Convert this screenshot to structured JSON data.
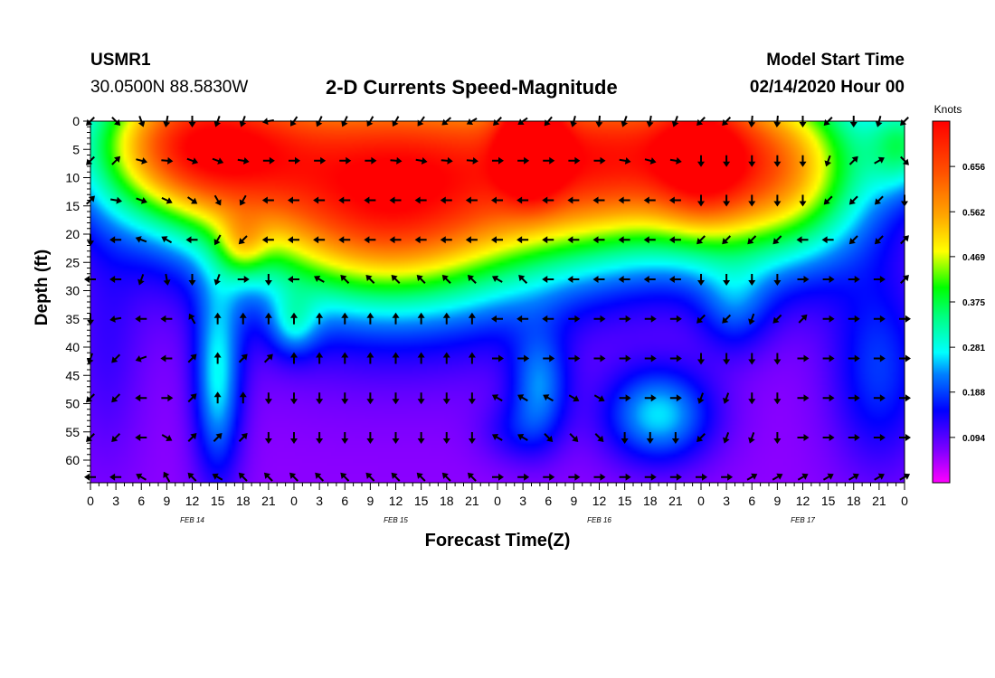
{
  "header": {
    "station": "USMR1",
    "coordinates": "30.0500N 88.5830W",
    "title": "2-D Currents Speed-Magnitude",
    "start_label": "Model Start Time",
    "start_value": "02/14/2020 Hour 00"
  },
  "chart_data": {
    "type": "heatmap",
    "title": "2-D Currents Speed-Magnitude",
    "xlabel": "Forecast Time(Z)",
    "ylabel": "Depth (ft)",
    "x_range": [
      0,
      96
    ],
    "y_range": [
      0,
      64
    ],
    "x_tick_labels": [
      "0",
      "3",
      "6",
      "9",
      "12",
      "15",
      "18",
      "21",
      "0",
      "3",
      "6",
      "9",
      "12",
      "15",
      "18",
      "21",
      "0",
      "3",
      "6",
      "9",
      "12",
      "15",
      "18",
      "21",
      "0",
      "3",
      "6",
      "9",
      "12",
      "15",
      "18",
      "21",
      "0"
    ],
    "y_tick_labels": [
      "0",
      "5",
      "10",
      "15",
      "20",
      "25",
      "30",
      "35",
      "40",
      "45",
      "50",
      "55",
      "60"
    ],
    "date_labels": [
      {
        "text": "FEB 14",
        "hour": 12
      },
      {
        "text": "FEB 15",
        "hour": 36
      },
      {
        "text": "FEB 16",
        "hour": 60
      },
      {
        "text": "FEB 17",
        "hour": 84
      }
    ],
    "colorbar": {
      "unit": "Knots",
      "range": [
        0,
        0.75
      ],
      "ticks": [
        "0.656",
        "0.562",
        "0.469",
        "0.375",
        "0.281",
        "0.188",
        "0.094"
      ],
      "tick_values": [
        0.656,
        0.562,
        0.469,
        0.375,
        0.281,
        0.188,
        0.094
      ]
    },
    "field_blobs": [
      {
        "t": 12,
        "d": 4,
        "st": 9,
        "sd": 10,
        "a": 0.56
      },
      {
        "t": 36,
        "d": 10,
        "st": 14,
        "sd": 15,
        "a": 0.66
      },
      {
        "t": 33,
        "d": 22,
        "st": 10,
        "sd": 8,
        "a": 0.08
      },
      {
        "t": 62,
        "d": 6,
        "st": 10,
        "sd": 12,
        "a": 0.52
      },
      {
        "t": 81,
        "d": 8,
        "st": 8,
        "sd": 12,
        "a": 0.48
      },
      {
        "t": 52,
        "d": 4,
        "st": 2.5,
        "sd": 6,
        "a": 0.35
      },
      {
        "t": 72,
        "d": 5,
        "st": 4,
        "sd": 10,
        "a": 0.22
      },
      {
        "t": 96,
        "d": 4,
        "st": 3,
        "sd": 6,
        "a": 0.22
      },
      {
        "t": 15,
        "d": 46,
        "st": 2,
        "sd": 12,
        "a": 0.2
      },
      {
        "t": 18,
        "d": 22,
        "st": 2,
        "sd": 4,
        "a": 0.14
      },
      {
        "t": 24,
        "d": 36,
        "st": 2,
        "sd": 4,
        "a": 0.12
      },
      {
        "t": 53,
        "d": 47,
        "st": 2.5,
        "sd": 7,
        "a": 0.15
      },
      {
        "t": 67,
        "d": 52,
        "st": 4.5,
        "sd": 6,
        "a": 0.2
      },
      {
        "t": 76,
        "d": 33,
        "st": 3,
        "sd": 6,
        "a": 0.1
      },
      {
        "t": 93,
        "d": 44,
        "st": 4,
        "sd": 12,
        "a": 0.12
      },
      {
        "t": 2,
        "d": 40,
        "st": 3,
        "sd": 15,
        "a": 0.05
      },
      {
        "t": 50,
        "d": 55,
        "st": 3,
        "sd": 4,
        "a": 0.06
      }
    ],
    "arrow_times": [
      0,
      3,
      6,
      9,
      12,
      15,
      18,
      21,
      24,
      27,
      30,
      33,
      36,
      39,
      42,
      45,
      48,
      51,
      54,
      57,
      60,
      63,
      66,
      69,
      72,
      75,
      78,
      81,
      84,
      87,
      90,
      93,
      96
    ],
    "arrow_depths": [
      0,
      7,
      14,
      21,
      28,
      35,
      42,
      49,
      56,
      63
    ],
    "arrow_directions_deg": [
      [
        225,
        135,
        160,
        190,
        180,
        200,
        200,
        260,
        215,
        205,
        205,
        210,
        210,
        215,
        230,
        240,
        225,
        235,
        220,
        195,
        185,
        200,
        190,
        200,
        225,
        225,
        185,
        185,
        180,
        225,
        180,
        195,
        225
      ],
      [
        225,
        45,
        105,
        95,
        110,
        110,
        100,
        90,
        90,
        90,
        90,
        90,
        95,
        100,
        95,
        95,
        90,
        90,
        90,
        90,
        90,
        100,
        105,
        100,
        180,
        180,
        180,
        180,
        180,
        200,
        45,
        60,
        135
      ],
      [
        45,
        100,
        110,
        115,
        125,
        150,
        210,
        270,
        270,
        270,
        270,
        270,
        270,
        270,
        270,
        270,
        270,
        270,
        270,
        270,
        270,
        270,
        270,
        270,
        180,
        180,
        180,
        180,
        180,
        225,
        225,
        225,
        180
      ],
      [
        180,
        270,
        290,
        300,
        270,
        210,
        225,
        270,
        270,
        270,
        270,
        270,
        270,
        270,
        270,
        270,
        270,
        270,
        270,
        270,
        270,
        270,
        270,
        270,
        225,
        225,
        225,
        225,
        270,
        270,
        225,
        225,
        45
      ],
      [
        270,
        270,
        200,
        170,
        180,
        200,
        90,
        180,
        270,
        300,
        315,
        315,
        315,
        315,
        315,
        315,
        300,
        315,
        270,
        270,
        270,
        270,
        270,
        270,
        180,
        180,
        180,
        180,
        90,
        90,
        90,
        90,
        45
      ],
      [
        180,
        260,
        270,
        270,
        330,
        0,
        0,
        0,
        0,
        0,
        0,
        0,
        0,
        0,
        0,
        0,
        270,
        270,
        270,
        90,
        90,
        90,
        90,
        90,
        225,
        225,
        200,
        225,
        45,
        90,
        90,
        90,
        90
      ],
      [
        200,
        225,
        250,
        270,
        45,
        0,
        45,
        45,
        0,
        0,
        0,
        0,
        0,
        0,
        0,
        0,
        90,
        90,
        90,
        90,
        90,
        90,
        90,
        90,
        180,
        180,
        180,
        180,
        90,
        90,
        90,
        90,
        90
      ],
      [
        225,
        225,
        270,
        90,
        45,
        0,
        0,
        180,
        180,
        180,
        180,
        180,
        180,
        180,
        180,
        180,
        300,
        300,
        300,
        120,
        120,
        90,
        90,
        90,
        200,
        200,
        180,
        180,
        90,
        90,
        90,
        90,
        90
      ],
      [
        225,
        225,
        270,
        120,
        45,
        45,
        45,
        180,
        180,
        180,
        180,
        180,
        180,
        180,
        180,
        180,
        300,
        300,
        135,
        135,
        135,
        180,
        180,
        180,
        225,
        200,
        200,
        180,
        90,
        90,
        90,
        90,
        90
      ],
      [
        270,
        270,
        300,
        330,
        315,
        300,
        315,
        315,
        315,
        315,
        315,
        315,
        315,
        315,
        315,
        315,
        90,
        90,
        90,
        90,
        90,
        90,
        90,
        90,
        90,
        90,
        60,
        60,
        60,
        60,
        60,
        60,
        60
      ]
    ]
  }
}
